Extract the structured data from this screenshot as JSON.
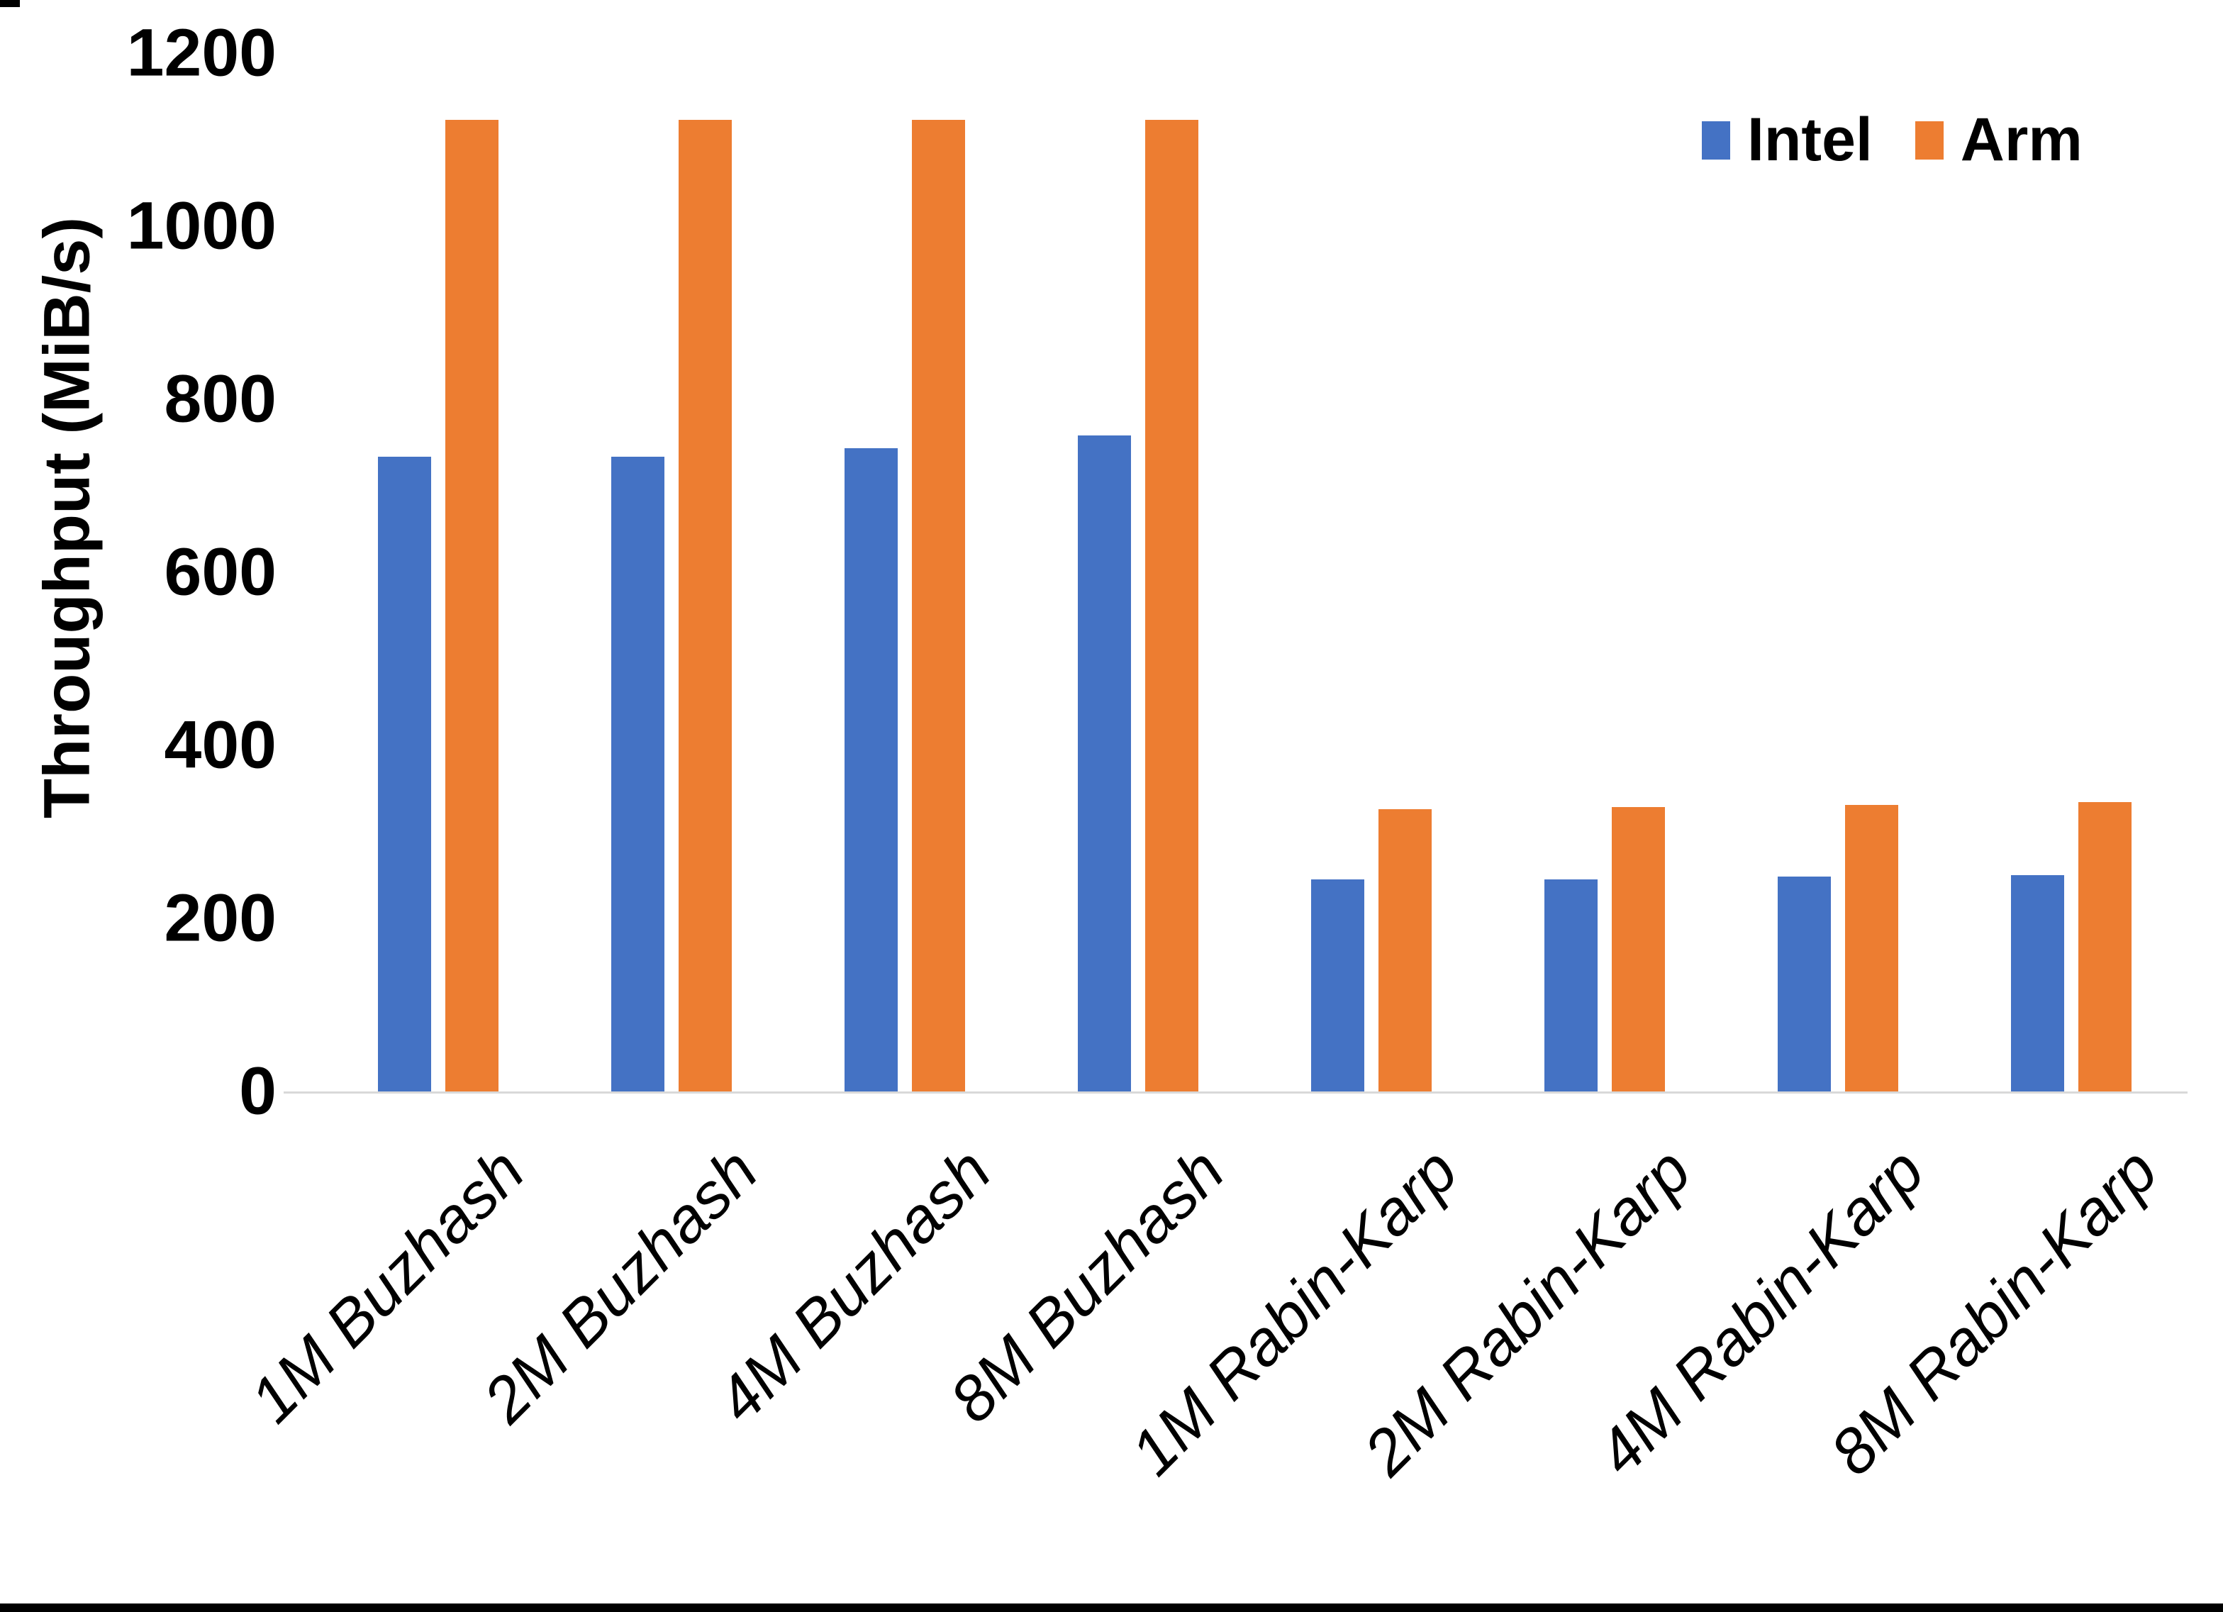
{
  "chart_data": {
    "type": "bar",
    "title": "",
    "xlabel": "",
    "ylabel": "Throughput (MiB/s)",
    "ylim": [
      0,
      1200
    ],
    "yticks": [
      0,
      200,
      400,
      600,
      800,
      1000,
      1200
    ],
    "grid": false,
    "legend_position": "top-right",
    "categories": [
      "1M Buzhash",
      "2M Buzhash",
      "4M Buzhash",
      "8M Buzhash",
      "1M Rabin-Karp",
      "2M Rabin-Karp",
      "4M Rabin-Karp",
      "8M Rabin-Karp"
    ],
    "series": [
      {
        "name": "Intel",
        "color": "#4472C4",
        "values": [
          735,
          735,
          745,
          760,
          247,
          247,
          250,
          252
        ]
      },
      {
        "name": "Arm",
        "color": "#ED7D31",
        "values": [
          1125,
          1125,
          1125,
          1125,
          328,
          330,
          333,
          336
        ]
      }
    ],
    "axis_line_color": "#D9D9D9",
    "text_color": "#000000",
    "background_color": "#FFFFFF"
  }
}
